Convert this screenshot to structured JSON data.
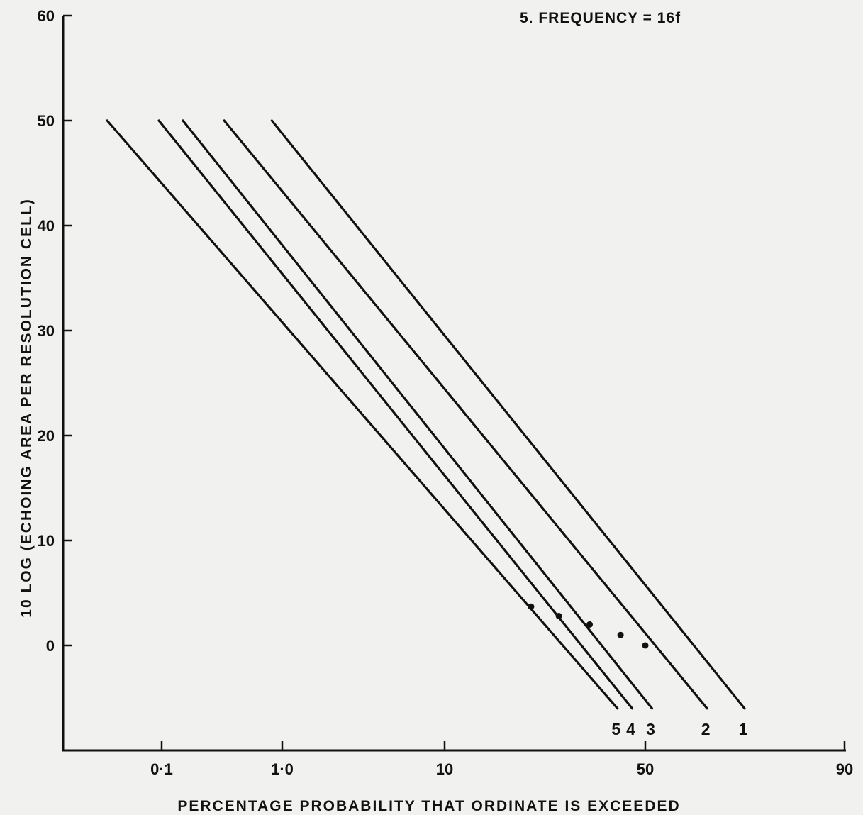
{
  "chart_data": {
    "type": "line",
    "title": "5. FREQUENCY = 16f",
    "xlabel": "PERCENTAGE PROBABILITY THAT ORDINATE IS EXCEEDED",
    "ylabel": "10 LOG (ECHOING AREA PER RESOLUTION CELL)",
    "x_scale": "normal-probability",
    "x_ticks": [
      {
        "value": 0.1,
        "label": "0·1"
      },
      {
        "value": 1.0,
        "label": "1·0"
      },
      {
        "value": 10,
        "label": "10"
      },
      {
        "value": 50,
        "label": "50"
      },
      {
        "value": 90,
        "label": "90"
      }
    ],
    "y_ticks": [
      0,
      10,
      20,
      30,
      40,
      50,
      60
    ],
    "ylim": [
      -10,
      60
    ],
    "grid": false,
    "series": [
      {
        "name": "1",
        "start": [
          0.82,
          50
        ],
        "end": [
          67,
          -6
        ],
        "marker": [
          50,
          0
        ]
      },
      {
        "name": "2",
        "start": [
          0.33,
          50
        ],
        "end": [
          60,
          -6
        ],
        "marker": [
          41,
          1
        ]
      },
      {
        "name": "3",
        "start": [
          0.15,
          50
        ],
        "end": [
          51,
          -6
        ],
        "marker": [
          32,
          2
        ]
      },
      {
        "name": "4",
        "start": [
          0.095,
          50
        ],
        "end": [
          45,
          -6
        ],
        "marker": [
          25,
          2.8
        ]
      },
      {
        "name": "5",
        "start": [
          0.037,
          50
        ],
        "end": [
          40,
          -6
        ],
        "marker": [
          20,
          3.7
        ]
      }
    ]
  }
}
